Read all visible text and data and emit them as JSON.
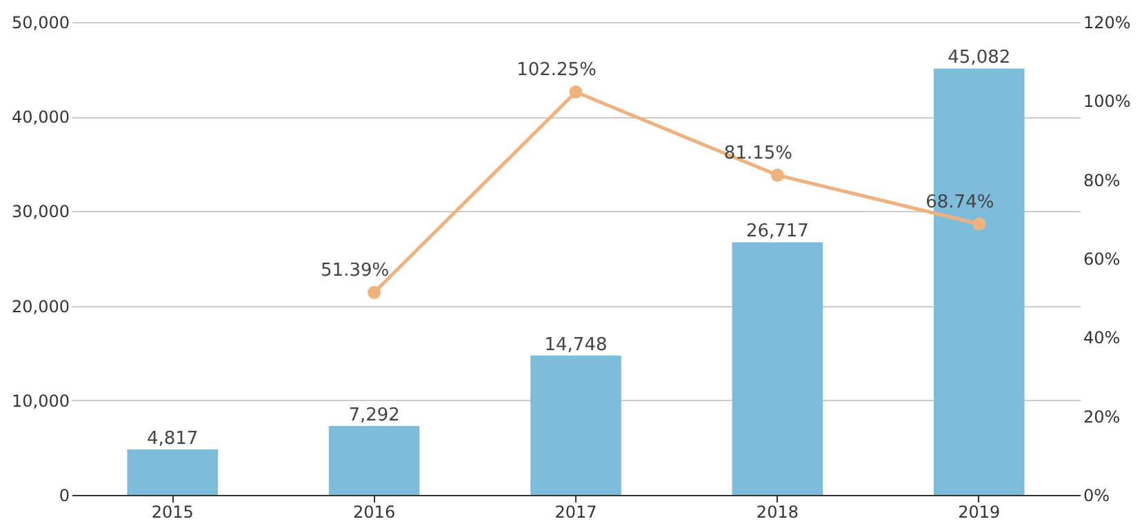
{
  "chart_data": {
    "type": "bar",
    "categories": [
      "2015",
      "2016",
      "2017",
      "2018",
      "2019"
    ],
    "series": [
      {
        "color": "#7dbcdb",
        "values": [
          4817,
          7292,
          14748,
          26717,
          45082
        ],
        "value_labels": [
          "4,817",
          "7,292",
          "14,748",
          "26,717",
          "45,082"
        ]
      },
      {
        "type": "line",
        "axis": "y2",
        "color": "#efb27e",
        "values": [
          null,
          51.39,
          102.25,
          81.15,
          68.74
        ],
        "value_labels": [
          null,
          "51.39%",
          "102.25%",
          "81.15%",
          "68.74%"
        ],
        "marker": "circle",
        "line_style": "solid"
      }
    ],
    "ylim": [
      0,
      50000
    ],
    "yticks": [
      {
        "value": 0,
        "label": "0"
      },
      {
        "value": 10000,
        "label": "10,000"
      },
      {
        "value": 20000,
        "label": "20,000"
      },
      {
        "value": 30000,
        "label": "30,000"
      },
      {
        "value": 40000,
        "label": "40,000"
      },
      {
        "value": 50000,
        "label": "50,000"
      }
    ],
    "y2lim": [
      0,
      120
    ],
    "y2ticks": [
      {
        "value": 0,
        "label": "0%"
      },
      {
        "value": 20,
        "label": "20%"
      },
      {
        "value": 40,
        "label": "40%"
      },
      {
        "value": 60,
        "label": "60%"
      },
      {
        "value": 80,
        "label": "80%"
      },
      {
        "value": 100,
        "label": "100%"
      },
      {
        "value": 120,
        "label": "120%"
      }
    ],
    "grid": "y"
  }
}
